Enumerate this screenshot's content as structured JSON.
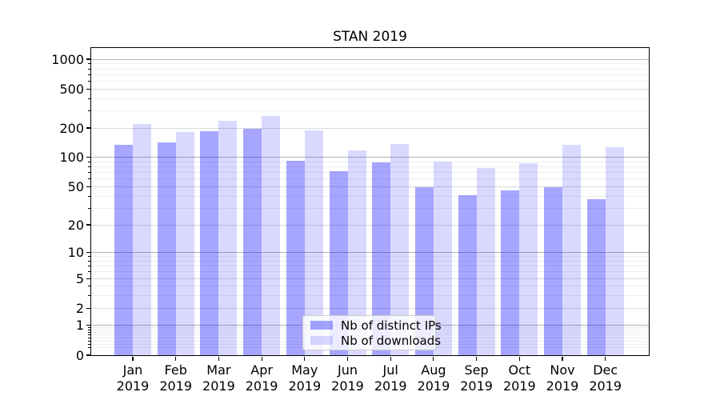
{
  "figure": {
    "title": "STAN 2019"
  },
  "legend": {
    "items": [
      {
        "label": "Nb of distinct IPs",
        "color": "rgba(0,0,255,0.35)"
      },
      {
        "label": "Nb of downloads",
        "color": "rgba(0,0,255,0.15)"
      }
    ]
  },
  "chart_data": {
    "type": "bar",
    "title": "STAN 2019",
    "categories": [
      "Jan",
      "Feb",
      "Mar",
      "Apr",
      "May",
      "Jun",
      "Jul",
      "Aug",
      "Sep",
      "Oct",
      "Nov",
      "Dec"
    ],
    "category_year": "2019",
    "series": [
      {
        "name": "Nb of distinct IPs",
        "color": "rgba(0,0,255,0.35)",
        "values": [
          134,
          143,
          186,
          198,
          93,
          73,
          89,
          50,
          41,
          46,
          50,
          37
        ]
      },
      {
        "name": "Nb of downloads",
        "color": "rgba(0,0,255,0.15)",
        "values": [
          219,
          182,
          236,
          266,
          188,
          118,
          137,
          91,
          78,
          87,
          136,
          128
        ]
      }
    ],
    "xlabel": "",
    "ylabel": "",
    "yscale": "log10(1+y)",
    "ylim": [
      0,
      1300
    ],
    "yticks": [
      0,
      1,
      2,
      5,
      10,
      20,
      50,
      100,
      200,
      500,
      1000
    ],
    "ytick_labels": [
      "0",
      "1",
      "2",
      "5",
      "10",
      "20",
      "50",
      "100",
      "200",
      "500",
      "1000"
    ],
    "grid_on": true,
    "gridlines": {
      "major": [
        1,
        10,
        100,
        1000
      ],
      "mid": [
        2,
        5,
        20,
        50,
        200,
        500
      ],
      "minor": [
        0.2,
        0.3,
        0.4,
        0.5,
        0.6,
        0.7,
        0.8,
        0.9,
        3,
        4,
        6,
        7,
        8,
        9,
        30,
        40,
        60,
        70,
        80,
        90,
        300,
        400,
        600,
        700,
        800,
        900
      ]
    },
    "legend_position": "lower center inside axes"
  },
  "colors": {
    "spine": "#000000",
    "grid_major": "#b3b3b3",
    "grid_mid": "#d9d9d9",
    "grid_minor": "#efefef",
    "background": "#ffffff"
  }
}
